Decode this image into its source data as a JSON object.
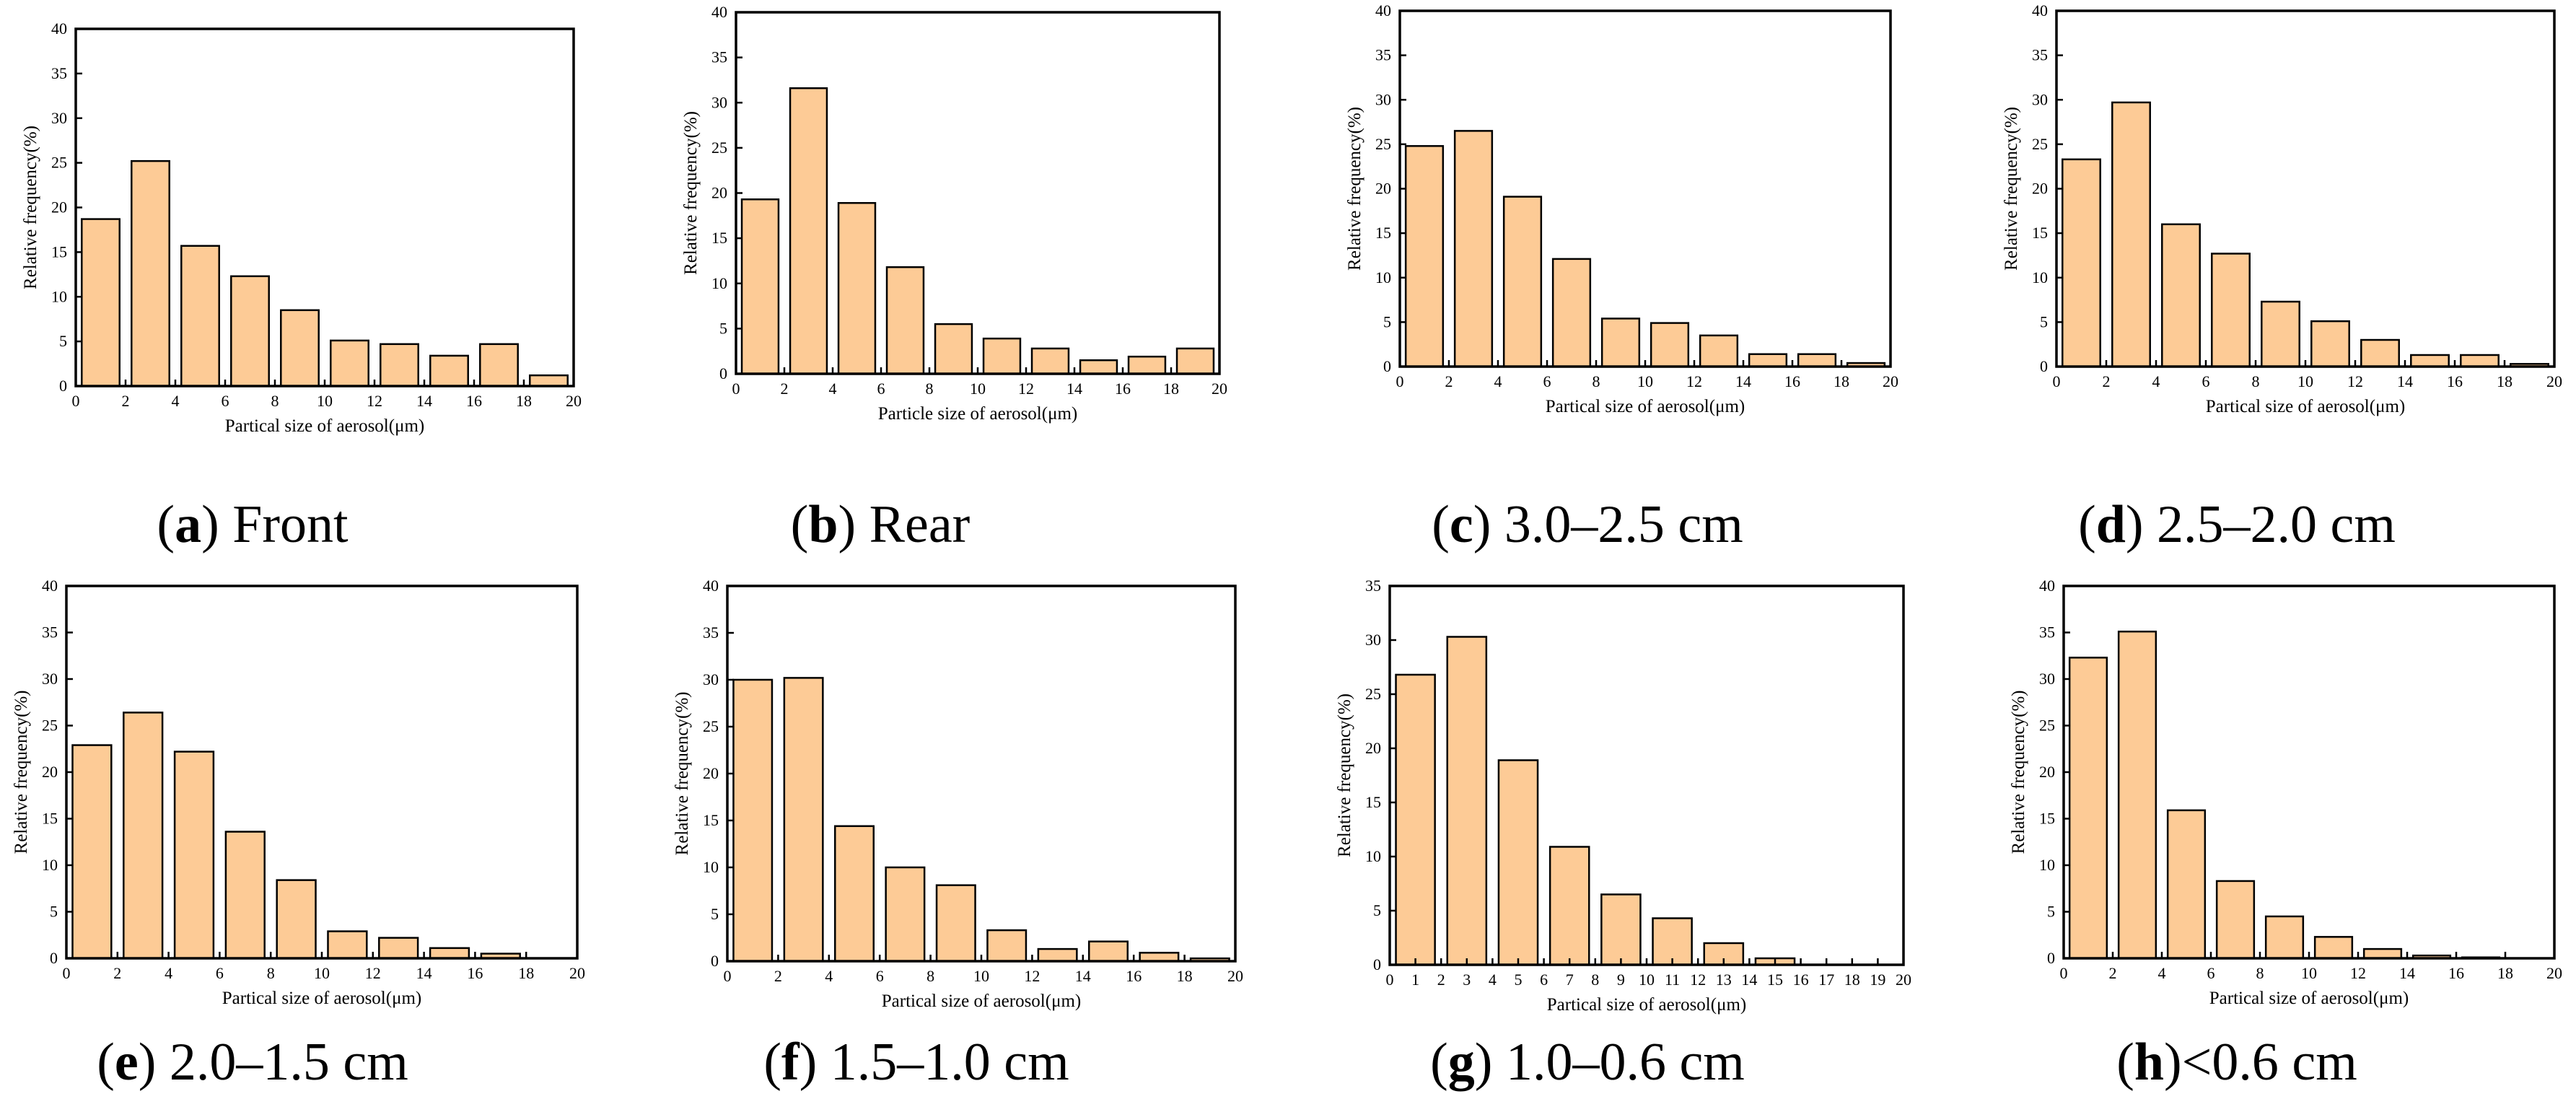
{
  "chart_data": [
    {
      "type": "bar",
      "panel_letter": "a",
      "caption": "Front",
      "xlabel": "Partical size of aerosol(μm)",
      "ylabel": "Relative frequency(%)",
      "xlim": [
        0,
        20
      ],
      "ylim": [
        0,
        40
      ],
      "xticks": [
        "0",
        "2",
        "4",
        "6",
        "8",
        "10",
        "12",
        "14",
        "16",
        "18",
        "20"
      ],
      "yticks": [
        "0",
        "5",
        "10",
        "15",
        "20",
        "25",
        "30",
        "35",
        "40"
      ],
      "bin_width": 2,
      "bins": [
        "0-2",
        "2-4",
        "4-6",
        "6-8",
        "8-10",
        "10-12",
        "12-14",
        "14-16",
        "16-18",
        "18-20"
      ],
      "values": [
        18.7,
        25.2,
        15.7,
        12.3,
        8.5,
        5.1,
        4.7,
        3.4,
        4.7,
        1.2
      ]
    },
    {
      "type": "bar",
      "panel_letter": "b",
      "caption": "Rear",
      "xlabel": "Particle size of aerosol(μm)",
      "ylabel": "Relative frequency(%)",
      "xlim": [
        0,
        20
      ],
      "ylim": [
        0,
        40
      ],
      "xticks": [
        "0",
        "2",
        "4",
        "6",
        "8",
        "10",
        "12",
        "14",
        "16",
        "18",
        "20"
      ],
      "yticks": [
        "0",
        "5",
        "10",
        "15",
        "20",
        "25",
        "30",
        "35",
        "40"
      ],
      "bin_width": 2,
      "bins": [
        "0-2",
        "2-4",
        "4-6",
        "6-8",
        "8-10",
        "10-12",
        "12-14",
        "14-16",
        "16-18",
        "18-20"
      ],
      "values": [
        19.3,
        31.6,
        18.9,
        11.8,
        5.5,
        3.9,
        2.8,
        1.5,
        1.9,
        2.8
      ]
    },
    {
      "type": "bar",
      "panel_letter": "c",
      "caption": "3.0–2.5 cm",
      "xlabel": "Partical size of aerosol(μm)",
      "ylabel": "Relative frequency(%)",
      "xlim": [
        0,
        20
      ],
      "ylim": [
        0,
        40
      ],
      "xticks": [
        "0",
        "2",
        "4",
        "6",
        "8",
        "10",
        "12",
        "14",
        "16",
        "18",
        "20"
      ],
      "yticks": [
        "0",
        "5",
        "10",
        "15",
        "20",
        "25",
        "30",
        "35",
        "40"
      ],
      "bin_width": 2,
      "bins": [
        "0-2",
        "2-4",
        "4-6",
        "6-8",
        "8-10",
        "10-12",
        "12-14",
        "14-16",
        "16-18",
        "18-20"
      ],
      "values": [
        24.8,
        26.5,
        19.1,
        12.1,
        5.4,
        4.9,
        3.5,
        1.4,
        1.4,
        0.4
      ]
    },
    {
      "type": "bar",
      "panel_letter": "d",
      "caption": "2.5–2.0 cm",
      "xlabel": "Partical size of aerosol(μm)",
      "ylabel": "Relative frequency(%)",
      "xlim": [
        0,
        20
      ],
      "ylim": [
        0,
        40
      ],
      "xticks": [
        "0",
        "2",
        "4",
        "6",
        "8",
        "10",
        "12",
        "14",
        "16",
        "18",
        "20"
      ],
      "yticks": [
        "0",
        "5",
        "10",
        "15",
        "20",
        "25",
        "30",
        "35",
        "40"
      ],
      "bin_width": 2,
      "bins": [
        "0-2",
        "2-4",
        "4-6",
        "6-8",
        "8-10",
        "10-12",
        "12-14",
        "14-16",
        "16-18",
        "18-20"
      ],
      "values": [
        23.3,
        29.7,
        16.0,
        12.7,
        7.3,
        5.1,
        3.0,
        1.3,
        1.3,
        0.3
      ]
    },
    {
      "type": "bar",
      "panel_letter": "e",
      "caption": "2.0–1.5 cm",
      "xlabel": "Partical size of aerosol(μm)",
      "ylabel": "Relative frequency(%)",
      "xlim": [
        0,
        20
      ],
      "ylim": [
        0,
        40
      ],
      "xticks": [
        "0",
        "2",
        "4",
        "6",
        "8",
        "10",
        "12",
        "14",
        "16",
        "18",
        "20"
      ],
      "yticks": [
        "0",
        "5",
        "10",
        "15",
        "20",
        "25",
        "30",
        "35",
        "40"
      ],
      "bin_width": 2,
      "bins": [
        "0-2",
        "2-4",
        "4-6",
        "6-8",
        "8-10",
        "10-12",
        "12-14",
        "14-16",
        "16-18",
        "18-20"
      ],
      "values": [
        22.9,
        26.4,
        22.2,
        13.6,
        8.4,
        2.9,
        2.2,
        1.1,
        0.5,
        0
      ]
    },
    {
      "type": "bar",
      "panel_letter": "f",
      "caption": "1.5–1.0 cm",
      "xlabel": "Partical size of aerosol(μm)",
      "ylabel": "Relative frequency(%)",
      "xlim": [
        0,
        20
      ],
      "ylim": [
        0,
        40
      ],
      "xticks": [
        "0",
        "2",
        "4",
        "6",
        "8",
        "10",
        "12",
        "14",
        "16",
        "18",
        "20"
      ],
      "yticks": [
        "0",
        "5",
        "10",
        "15",
        "20",
        "25",
        "30",
        "35",
        "40"
      ],
      "bin_width": 2,
      "bins": [
        "0-2",
        "2-4",
        "4-6",
        "6-8",
        "8-10",
        "10-12",
        "12-14",
        "14-16",
        "16-18",
        "18-20"
      ],
      "values": [
        30.0,
        30.2,
        14.4,
        10.0,
        8.1,
        3.3,
        1.3,
        2.1,
        0.9,
        0.3
      ]
    },
    {
      "type": "bar",
      "panel_letter": "g",
      "caption": "1.0–0.6 cm",
      "xlabel": "Partical size of aerosol(μm)",
      "ylabel": "Relative frequency(%)",
      "xlim": [
        0,
        20
      ],
      "ylim": [
        0,
        35
      ],
      "xticks": [
        "0",
        "1",
        "2",
        "3",
        "4",
        "5",
        "6",
        "7",
        "8",
        "9",
        "10",
        "11",
        "12",
        "13",
        "14",
        "15",
        "16",
        "17",
        "18",
        "19",
        "20"
      ],
      "yticks": [
        "0",
        "5",
        "10",
        "15",
        "20",
        "25",
        "30",
        "35"
      ],
      "bin_width": 2,
      "bins": [
        "0-2",
        "2-4",
        "4-6",
        "6-8",
        "8-10",
        "10-12",
        "12-14",
        "14-16",
        "16-18",
        "18-20"
      ],
      "values": [
        26.8,
        30.3,
        18.9,
        10.9,
        6.5,
        4.3,
        2.0,
        0.6,
        0,
        0
      ]
    },
    {
      "type": "bar",
      "panel_letter": "h",
      "caption": "<0.6 cm",
      "xlabel": "Partical size of aerosol(μm)",
      "ylabel": "Relative frequency(%)",
      "xlim": [
        0,
        20
      ],
      "ylim": [
        0,
        40
      ],
      "xticks": [
        "0",
        "2",
        "4",
        "6",
        "8",
        "10",
        "12",
        "14",
        "16",
        "18",
        "20"
      ],
      "yticks": [
        "0",
        "5",
        "10",
        "15",
        "20",
        "25",
        "30",
        "35",
        "40"
      ],
      "bin_width": 2,
      "bins": [
        "0-2",
        "2-4",
        "4-6",
        "6-8",
        "8-10",
        "10-12",
        "12-14",
        "14-16",
        "16-18",
        "18-20"
      ],
      "values": [
        32.3,
        35.1,
        15.9,
        8.3,
        4.5,
        2.3,
        1.0,
        0.3,
        0.1,
        0
      ]
    }
  ],
  "colors": {
    "bar_fill": "#fdcb96",
    "bar_stroke": "#000000",
    "axis": "#000000"
  }
}
